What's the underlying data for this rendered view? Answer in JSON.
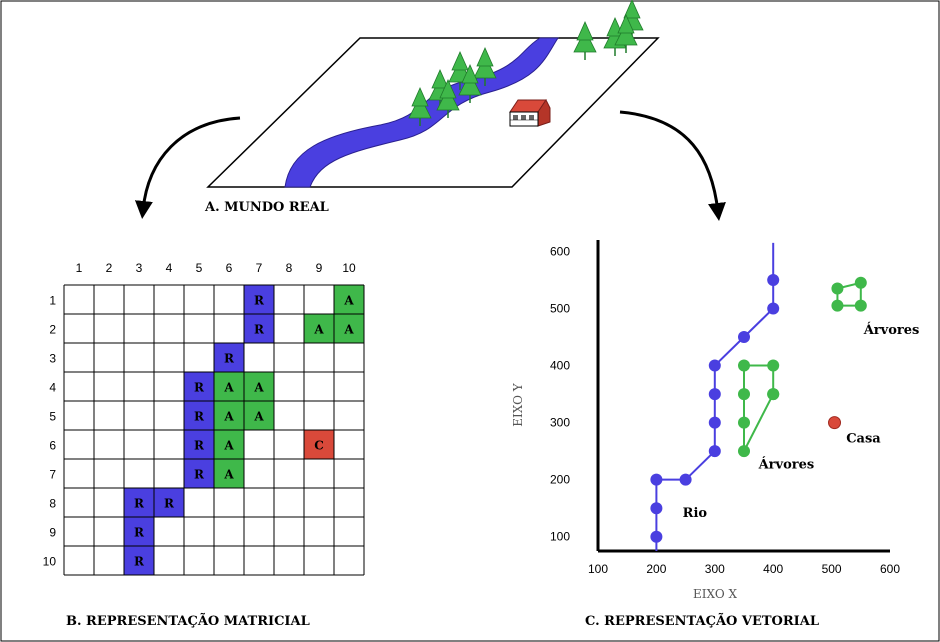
{
  "captions": {
    "real_world": "A. MUNDO REAL",
    "raster": "B. REPRESENTAÇÃO MATRICIAL",
    "vector": "C. REPRESENTAÇÃO VETORIAL"
  },
  "colors": {
    "river": "#4a3fe0",
    "tree": "#3fb84a",
    "house": "#d9493a",
    "border": "#000000"
  },
  "raster": {
    "col_labels": [
      "1",
      "2",
      "3",
      "4",
      "5",
      "6",
      "7",
      "8",
      "9",
      "10"
    ],
    "row_labels": [
      "1",
      "2",
      "3",
      "4",
      "5",
      "6",
      "7",
      "8",
      "9",
      "10"
    ],
    "cells": [
      {
        "row": 1,
        "col": 7,
        "kind": "R",
        "text": "R"
      },
      {
        "row": 1,
        "col": 10,
        "kind": "A",
        "text": "A"
      },
      {
        "row": 2,
        "col": 7,
        "kind": "R",
        "text": "R"
      },
      {
        "row": 2,
        "col": 9,
        "kind": "A",
        "text": "A"
      },
      {
        "row": 2,
        "col": 10,
        "kind": "A",
        "text": "A"
      },
      {
        "row": 3,
        "col": 6,
        "kind": "R",
        "text": "R"
      },
      {
        "row": 4,
        "col": 5,
        "kind": "R",
        "text": "R"
      },
      {
        "row": 4,
        "col": 6,
        "kind": "A",
        "text": "A"
      },
      {
        "row": 4,
        "col": 7,
        "kind": "A",
        "text": "A"
      },
      {
        "row": 5,
        "col": 5,
        "kind": "R",
        "text": "R"
      },
      {
        "row": 5,
        "col": 6,
        "kind": "A",
        "text": "A"
      },
      {
        "row": 5,
        "col": 7,
        "kind": "A",
        "text": "A"
      },
      {
        "row": 6,
        "col": 5,
        "kind": "R",
        "text": "R"
      },
      {
        "row": 6,
        "col": 6,
        "kind": "A",
        "text": "A"
      },
      {
        "row": 6,
        "col": 9,
        "kind": "C",
        "text": "C"
      },
      {
        "row": 7,
        "col": 5,
        "kind": "R",
        "text": "R"
      },
      {
        "row": 7,
        "col": 6,
        "kind": "A",
        "text": "A"
      },
      {
        "row": 8,
        "col": 3,
        "kind": "R",
        "text": "R"
      },
      {
        "row": 8,
        "col": 4,
        "kind": "R",
        "text": "R"
      },
      {
        "row": 9,
        "col": 3,
        "kind": "R",
        "text": "R"
      },
      {
        "row": 10,
        "col": 3,
        "kind": "R",
        "text": "R"
      }
    ]
  },
  "chart_data": {
    "type": "scatter",
    "xlabel": "EIXO X",
    "ylabel": "EIXO Y",
    "xlim": [
      100,
      600
    ],
    "ylim": [
      75,
      620
    ],
    "x_ticks": [
      "100",
      "200",
      "300",
      "400",
      "500",
      "600"
    ],
    "y_ticks": [
      "100",
      "200",
      "300",
      "400",
      "500",
      "600"
    ],
    "series": [
      {
        "name": "Rio",
        "kind": "polyline",
        "x": [
          200,
          200,
          200,
          250,
          300,
          300,
          300,
          300,
          350,
          400,
          400
        ],
        "y": [
          100,
          150,
          200,
          200,
          250,
          300,
          350,
          400,
          450,
          500,
          550
        ]
      },
      {
        "name": "Árvores",
        "kind": "polygon",
        "x": [
          350,
          400,
          400,
          400,
          350,
          350,
          350
        ],
        "y": [
          400,
          400,
          350,
          350,
          250,
          300,
          350
        ]
      },
      {
        "name": "Árvores",
        "kind": "polygon",
        "x": [
          510,
          550,
          550,
          510
        ],
        "y": [
          535,
          545,
          505,
          505
        ]
      },
      {
        "name": "Casa",
        "kind": "point",
        "x": [
          505
        ],
        "y": [
          300
        ]
      }
    ],
    "annotations": [
      {
        "text": "Rio",
        "x": 245,
        "y": 135
      },
      {
        "text": "Árvores",
        "x": 375,
        "y": 220
      },
      {
        "text": "Árvores",
        "x": 555,
        "y": 455
      },
      {
        "text": "Casa",
        "x": 525,
        "y": 265
      }
    ]
  }
}
